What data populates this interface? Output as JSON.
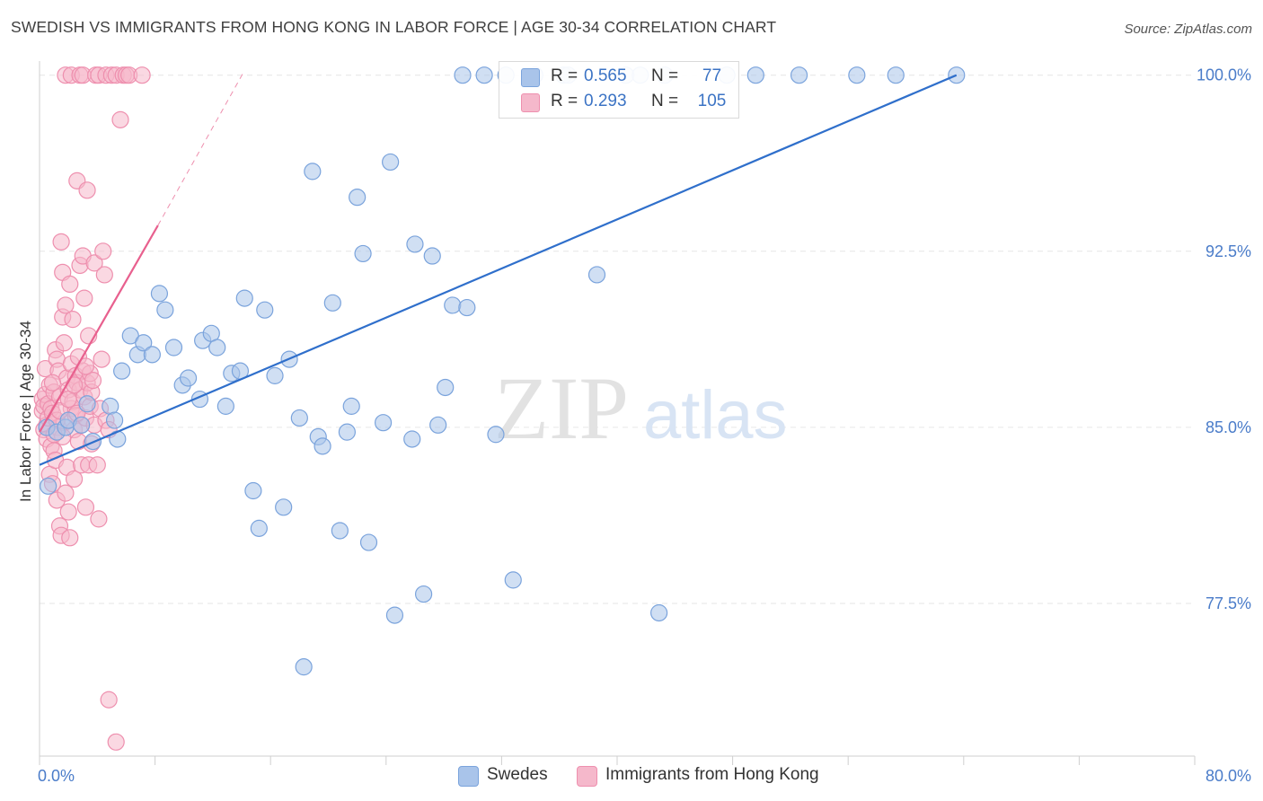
{
  "title": "SWEDISH VS IMMIGRANTS FROM HONG KONG IN LABOR FORCE | AGE 30-34 CORRELATION CHART",
  "source": "Source: ZipAtlas.com",
  "watermark": {
    "zip": "ZIP",
    "atlas": "atlas"
  },
  "colors": {
    "blue": "#a9c4ea",
    "blue_stroke": "#7aa3dc",
    "blue_line": "#2f6fcb",
    "pink": "#f5b8cb",
    "pink_stroke": "#ee8fae",
    "pink_line": "#e8608e",
    "tick_text": "#4a7cc9"
  },
  "legend_top": {
    "rows": [
      {
        "r_label": "R =",
        "r_value": "0.565",
        "n_label": "N =",
        "n_value": "77"
      },
      {
        "r_label": "R =",
        "r_value": "0.293",
        "n_label": "N =",
        "n_value": "105"
      }
    ]
  },
  "legend_bottom": {
    "items": [
      "Swedes",
      "Immigrants from Hong Kong"
    ]
  },
  "chart_data": {
    "type": "scatter",
    "xlabel": "",
    "ylabel": "In Labor Force | Age 30-34",
    "x_tick_labels": [
      "0.0%",
      "80.0%"
    ],
    "y_tick_labels": [
      "100.0%",
      "92.5%",
      "85.0%",
      "77.5%"
    ],
    "y_ticks": [
      100.0,
      92.5,
      85.0,
      77.5
    ],
    "xlim": [
      0,
      80
    ],
    "ylim": [
      71.0,
      100.6
    ],
    "grid": true,
    "legend_position": "top-center",
    "series": [
      {
        "name": "Swedes",
        "trend": {
          "x": [
            0.0,
            63.5
          ],
          "y": [
            83.4,
            100.0
          ]
        },
        "points": [
          [
            0.5,
            85.0
          ],
          [
            0.6,
            82.5
          ],
          [
            1.2,
            84.8
          ],
          [
            1.8,
            85.0
          ],
          [
            2.0,
            85.3
          ],
          [
            2.9,
            85.1
          ],
          [
            3.3,
            86.0
          ],
          [
            3.7,
            84.4
          ],
          [
            4.9,
            85.9
          ],
          [
            5.2,
            85.3
          ],
          [
            5.4,
            84.5
          ],
          [
            5.7,
            87.4
          ],
          [
            6.3,
            88.9
          ],
          [
            6.8,
            88.1
          ],
          [
            7.2,
            88.6
          ],
          [
            7.8,
            88.1
          ],
          [
            8.3,
            90.7
          ],
          [
            8.7,
            90.0
          ],
          [
            9.3,
            88.4
          ],
          [
            9.9,
            86.8
          ],
          [
            10.3,
            87.1
          ],
          [
            11.1,
            86.2
          ],
          [
            11.3,
            88.7
          ],
          [
            11.9,
            89.0
          ],
          [
            12.3,
            88.4
          ],
          [
            12.9,
            85.9
          ],
          [
            13.3,
            87.3
          ],
          [
            13.9,
            87.4
          ],
          [
            14.2,
            90.5
          ],
          [
            14.8,
            82.3
          ],
          [
            15.2,
            80.7
          ],
          [
            15.6,
            90.0
          ],
          [
            16.3,
            87.2
          ],
          [
            16.9,
            81.6
          ],
          [
            17.3,
            87.9
          ],
          [
            18.0,
            85.4
          ],
          [
            18.3,
            74.8
          ],
          [
            18.9,
            95.9
          ],
          [
            19.3,
            84.6
          ],
          [
            19.6,
            84.2
          ],
          [
            20.3,
            90.3
          ],
          [
            20.8,
            80.6
          ],
          [
            21.3,
            84.8
          ],
          [
            21.6,
            85.9
          ],
          [
            22.0,
            94.8
          ],
          [
            22.4,
            92.4
          ],
          [
            22.8,
            80.1
          ],
          [
            23.8,
            85.2
          ],
          [
            24.3,
            96.3
          ],
          [
            24.6,
            77.0
          ],
          [
            25.8,
            84.5
          ],
          [
            26.0,
            92.8
          ],
          [
            26.6,
            77.9
          ],
          [
            27.2,
            92.3
          ],
          [
            27.6,
            85.1
          ],
          [
            28.1,
            86.7
          ],
          [
            28.6,
            90.2
          ],
          [
            29.3,
            100.0
          ],
          [
            29.6,
            90.1
          ],
          [
            30.8,
            100.0
          ],
          [
            31.6,
            84.7
          ],
          [
            32.3,
            100.0
          ],
          [
            32.8,
            78.5
          ],
          [
            34.3,
            100.0
          ],
          [
            36.3,
            100.0
          ],
          [
            36.6,
            100.0
          ],
          [
            38.6,
            91.5
          ],
          [
            40.6,
            100.0
          ],
          [
            41.6,
            100.0
          ],
          [
            42.9,
            77.1
          ],
          [
            43.3,
            100.0
          ],
          [
            47.6,
            100.0
          ],
          [
            49.6,
            100.0
          ],
          [
            52.6,
            100.0
          ],
          [
            56.6,
            100.0
          ],
          [
            59.3,
            100.0
          ],
          [
            63.5,
            100.0
          ]
        ]
      },
      {
        "name": "Immigrants from Hong Kong",
        "trend": {
          "x": [
            0.0,
            8.2
          ],
          "y": [
            84.8,
            93.6
          ]
        },
        "trend_extension": {
          "x": [
            8.2,
            14.2
          ],
          "y": [
            93.6,
            100.2
          ]
        },
        "points": [
          [
            0.2,
            85.7
          ],
          [
            0.2,
            86.2
          ],
          [
            0.3,
            85.9
          ],
          [
            0.3,
            84.9
          ],
          [
            0.4,
            87.5
          ],
          [
            0.4,
            86.4
          ],
          [
            0.5,
            85.1
          ],
          [
            0.5,
            84.5
          ],
          [
            0.6,
            86.0
          ],
          [
            0.6,
            85.4
          ],
          [
            0.7,
            83.0
          ],
          [
            0.7,
            86.8
          ],
          [
            0.8,
            85.8
          ],
          [
            0.8,
            84.2
          ],
          [
            0.9,
            85.6
          ],
          [
            0.9,
            82.6
          ],
          [
            1.0,
            86.5
          ],
          [
            1.0,
            84.0
          ],
          [
            1.1,
            88.3
          ],
          [
            1.1,
            83.6
          ],
          [
            1.2,
            87.9
          ],
          [
            1.2,
            81.9
          ],
          [
            1.3,
            87.4
          ],
          [
            1.3,
            85.0
          ],
          [
            1.4,
            80.8
          ],
          [
            1.4,
            86.3
          ],
          [
            1.5,
            92.9
          ],
          [
            1.5,
            80.4
          ],
          [
            1.6,
            89.7
          ],
          [
            1.6,
            91.6
          ],
          [
            1.7,
            88.6
          ],
          [
            1.7,
            85.2
          ],
          [
            1.8,
            90.2
          ],
          [
            1.8,
            82.2
          ],
          [
            1.9,
            87.1
          ],
          [
            1.9,
            83.3
          ],
          [
            2.0,
            86.6
          ],
          [
            2.0,
            81.4
          ],
          [
            2.1,
            80.3
          ],
          [
            2.1,
            91.1
          ],
          [
            2.2,
            85.8
          ],
          [
            2.2,
            87.7
          ],
          [
            2.3,
            89.6
          ],
          [
            2.3,
            86.1
          ],
          [
            2.4,
            84.9
          ],
          [
            2.4,
            82.8
          ],
          [
            2.5,
            85.5
          ],
          [
            2.5,
            87.2
          ],
          [
            2.6,
            95.5
          ],
          [
            2.6,
            86.9
          ],
          [
            2.7,
            88.0
          ],
          [
            2.7,
            84.4
          ],
          [
            2.8,
            91.9
          ],
          [
            2.8,
            86.6
          ],
          [
            2.9,
            85.1
          ],
          [
            2.9,
            83.4
          ],
          [
            3.0,
            92.3
          ],
          [
            3.0,
            87.4
          ],
          [
            3.1,
            90.5
          ],
          [
            3.1,
            86.3
          ],
          [
            3.2,
            85.4
          ],
          [
            3.2,
            81.6
          ],
          [
            3.3,
            95.1
          ],
          [
            3.3,
            86.9
          ],
          [
            3.4,
            83.4
          ],
          [
            3.4,
            88.9
          ],
          [
            3.5,
            87.3
          ],
          [
            3.5,
            85.9
          ],
          [
            3.6,
            86.5
          ],
          [
            3.6,
            84.3
          ],
          [
            3.8,
            92.0
          ],
          [
            3.8,
            85.1
          ],
          [
            4.0,
            83.4
          ],
          [
            4.1,
            81.1
          ],
          [
            4.2,
            85.8
          ],
          [
            4.3,
            87.9
          ],
          [
            4.4,
            92.5
          ],
          [
            4.5,
            91.5
          ],
          [
            4.6,
            85.3
          ],
          [
            4.8,
            84.9
          ],
          [
            1.8,
            100.0
          ],
          [
            2.2,
            100.0
          ],
          [
            2.8,
            100.0
          ],
          [
            3.0,
            100.0
          ],
          [
            3.9,
            100.0
          ],
          [
            4.1,
            100.0
          ],
          [
            4.6,
            100.0
          ],
          [
            5.0,
            100.0
          ],
          [
            5.3,
            100.0
          ],
          [
            5.6,
            98.1
          ],
          [
            5.8,
            100.0
          ],
          [
            6.0,
            100.0
          ],
          [
            6.2,
            100.0
          ],
          [
            7.1,
            100.0
          ],
          [
            4.8,
            73.4
          ],
          [
            5.3,
            71.6
          ],
          [
            1.2,
            85.3
          ],
          [
            1.6,
            84.6
          ],
          [
            2.6,
            85.6
          ],
          [
            3.7,
            87.0
          ],
          [
            0.9,
            86.9
          ],
          [
            1.4,
            85.7
          ],
          [
            2.0,
            86.2
          ],
          [
            2.4,
            86.8
          ],
          [
            1.0,
            84.7
          ],
          [
            3.2,
            87.6
          ]
        ]
      }
    ]
  }
}
